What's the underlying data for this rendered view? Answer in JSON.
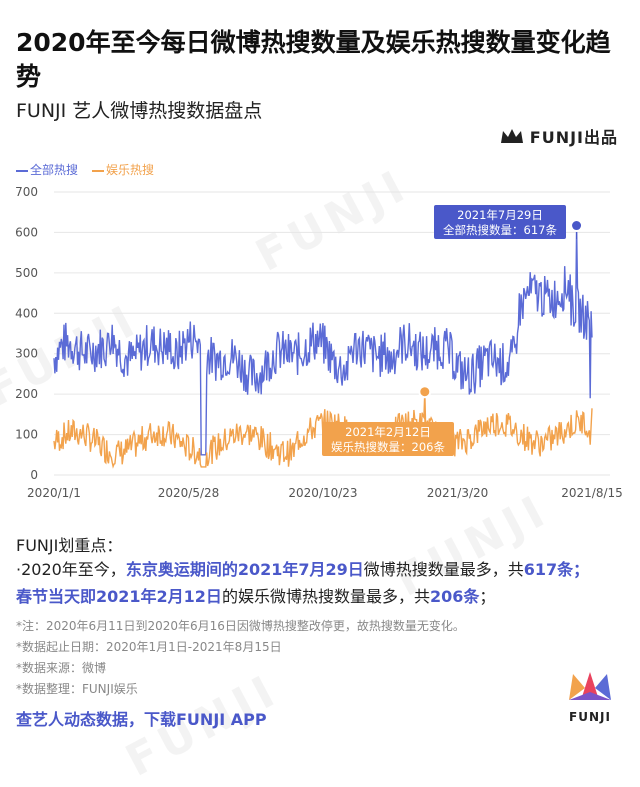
{
  "header": {
    "title": "2020年至今每日微博热搜数量及娱乐热搜数量变化趋势",
    "subtitle": "FUNJI 艺人微博热搜数据盘点",
    "brand": "FUNJI出品"
  },
  "chart_data": {
    "type": "line",
    "ylim": [
      0,
      700
    ],
    "yticks": [
      "0",
      "100",
      "200",
      "300",
      "400",
      "500",
      "600",
      "700"
    ],
    "xticks": [
      "2020/1/1",
      "2020/5/28",
      "2020/10/23",
      "2021/3/20",
      "2021/8/15"
    ],
    "x_start": "2020/1/1",
    "x_end": "2021/8/15",
    "series": [
      {
        "name": "全部热搜",
        "color": "#5b6bd6"
      },
      {
        "name": "娱乐热搜",
        "color": "#f2a24c"
      }
    ],
    "peak_all": {
      "date": "2021/7/29",
      "value": 617
    },
    "peak_ent": {
      "date": "2021/2/12",
      "value": 206
    },
    "gap": {
      "from": "2020/6/11",
      "to": "2020/6/16"
    },
    "annotations": {
      "all_date": "2021年7月29日",
      "all_text": "全部热搜数量：617条",
      "ent_date": "2021年2月12日",
      "ent_text": "娱乐热搜数量：206条"
    }
  },
  "notes": {
    "heading": "FUNJI划重点：",
    "line1_pre": "·2020年至今，",
    "line1_hl": "东京奥运期间的2021年7月29日",
    "line1_mid": "微博热搜数量最多，共",
    "line1_num": "617条；",
    "line2_hl": "春节当天即2021年2月12日",
    "line2_mid": "的娱乐微博热搜数量最多，共",
    "line2_num": "206条",
    "line2_end": "；",
    "fine1": "*注：2020年6月11日到2020年6月16日因微博热搜整改停更，故热搜数量无变化。",
    "fine2": "*数据起止日期：2020年1月1日-2021年8月15日",
    "fine3": "*数据来源：微博",
    "fine4": "*数据整理：FUNJI娱乐"
  },
  "cta": "查艺人动态数据，下载FUNJI APP",
  "logo_text": "FUNJI",
  "watermark": "FUNJI"
}
